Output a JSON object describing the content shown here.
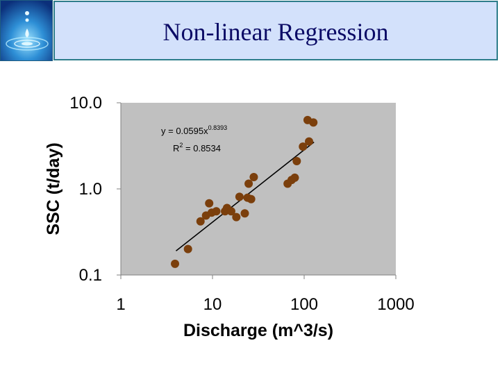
{
  "slide": {
    "title": "Non-linear Regression"
  },
  "chart_data": {
    "type": "scatter",
    "title": "",
    "xlabel": "Discharge (m^3/s)",
    "ylabel": "SSC (t/day)",
    "xscale": "log",
    "yscale": "log",
    "xlim": [
      1,
      1000
    ],
    "ylim": [
      0.1,
      10
    ],
    "xticks": [
      "1",
      "10",
      "100",
      "1000"
    ],
    "yticks": [
      "10.0",
      "1.0",
      "0.1"
    ],
    "plot_background": "#c0c0c0",
    "marker_color": "#7b3f0c",
    "points": [
      {
        "x": 3.9,
        "y": 0.135
      },
      {
        "x": 5.4,
        "y": 0.2
      },
      {
        "x": 7.4,
        "y": 0.42
      },
      {
        "x": 8.5,
        "y": 0.49
      },
      {
        "x": 9.2,
        "y": 0.68
      },
      {
        "x": 9.8,
        "y": 0.53
      },
      {
        "x": 11,
        "y": 0.55
      },
      {
        "x": 13.7,
        "y": 0.55
      },
      {
        "x": 14.4,
        "y": 0.6
      },
      {
        "x": 16,
        "y": 0.55
      },
      {
        "x": 18.2,
        "y": 0.47
      },
      {
        "x": 19.7,
        "y": 0.81
      },
      {
        "x": 22.5,
        "y": 0.52
      },
      {
        "x": 24.1,
        "y": 0.79
      },
      {
        "x": 26.4,
        "y": 0.76
      },
      {
        "x": 24.8,
        "y": 1.15
      },
      {
        "x": 28.2,
        "y": 1.37
      },
      {
        "x": 66,
        "y": 1.15
      },
      {
        "x": 73,
        "y": 1.27
      },
      {
        "x": 79,
        "y": 1.35
      },
      {
        "x": 83,
        "y": 2.1
      },
      {
        "x": 97,
        "y": 3.1
      },
      {
        "x": 109,
        "y": 6.3
      },
      {
        "x": 113,
        "y": 3.55
      },
      {
        "x": 126,
        "y": 5.9
      }
    ],
    "trendline": {
      "type": "power",
      "a": 0.0595,
      "b": 0.8393,
      "x_range": [
        4,
        128
      ],
      "equation_base": "y = 0.0595x",
      "equation_exponent": "0.8393",
      "r2_prefix": "R",
      "r2_power": "2",
      "r2_value": " = 0.8534"
    }
  }
}
